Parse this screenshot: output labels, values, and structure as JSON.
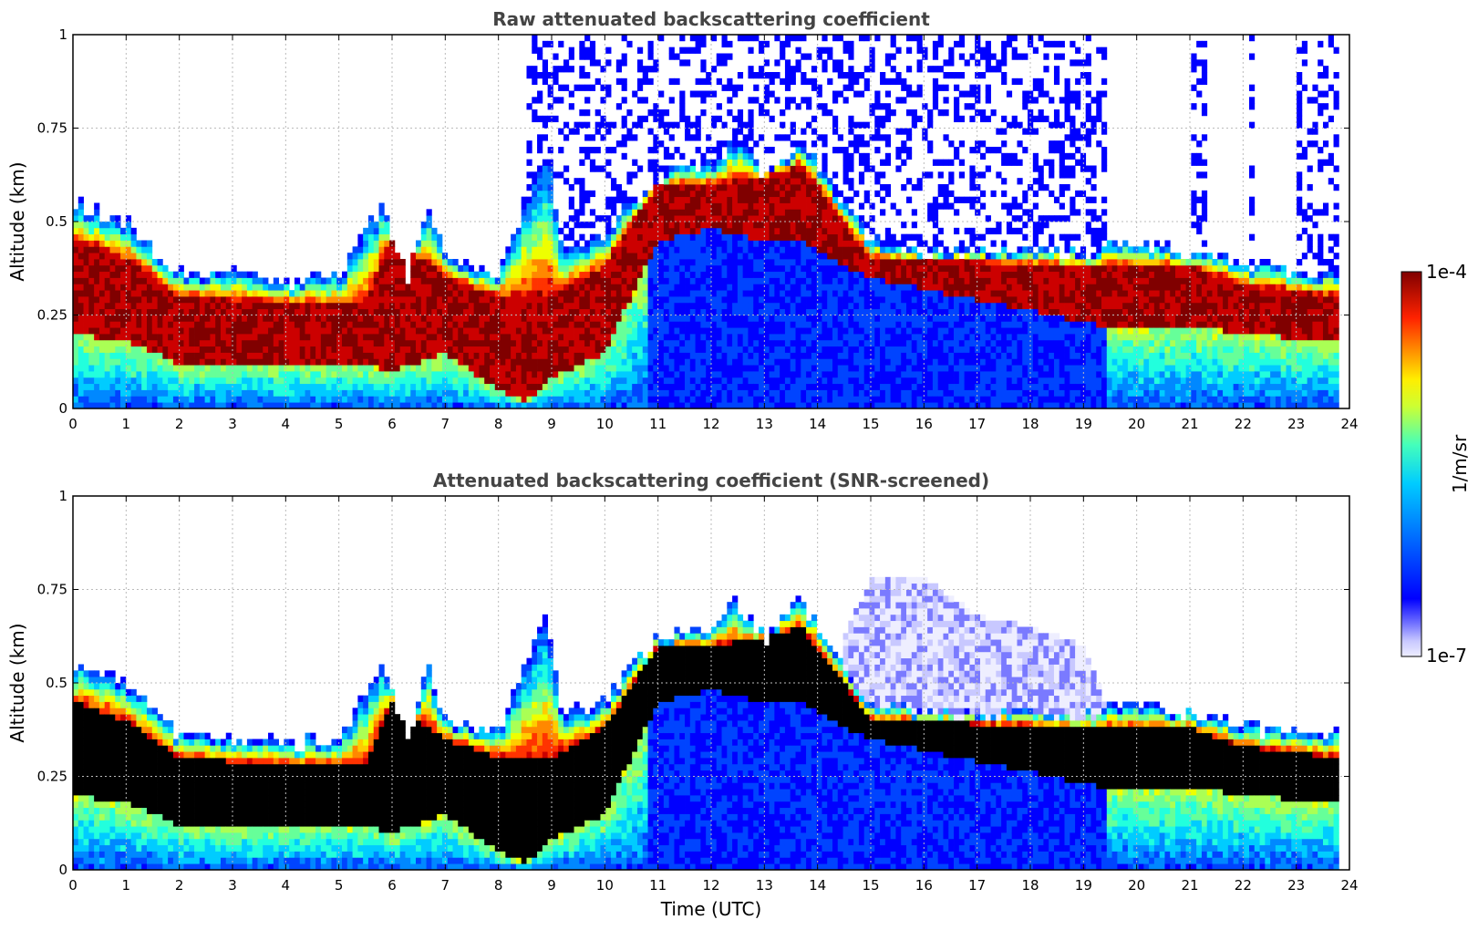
{
  "colors": {
    "colormap": [
      "#eeeeff",
      "#c8c8ff",
      "#7a7aff",
      "#0000ff",
      "#0044ff",
      "#0088ff",
      "#00ccff",
      "#22ffdd",
      "#66ff99",
      "#aaff55",
      "#eeff00",
      "#ffcc00",
      "#ff8800",
      "#ff3300",
      "#cc0000",
      "#800000"
    ],
    "screened_saturation": "#000000",
    "grid": "#bbbbbb",
    "title": "#444444"
  },
  "chart_data": [
    {
      "type": "heatmap",
      "title": "Raw attenuated backscattering coefficient",
      "xlabel": "",
      "ylabel": "Altitude (km)",
      "xlim": [
        0,
        24
      ],
      "ylim": [
        0,
        1
      ],
      "x_ticks": [
        "0",
        "1",
        "2",
        "3",
        "4",
        "5",
        "6",
        "7",
        "8",
        "9",
        "10",
        "11",
        "12",
        "13",
        "14",
        "15",
        "16",
        "17",
        "18",
        "19",
        "20",
        "21",
        "22",
        "23",
        "24"
      ],
      "y_ticks": [
        "0",
        "0.25",
        "0.5",
        "0.75",
        "1"
      ],
      "grid": true,
      "data_extent_hours": [
        0,
        23.8
      ],
      "layer_top_km": [
        [
          0,
          0.55
        ],
        [
          1,
          0.5
        ],
        [
          2,
          0.36
        ],
        [
          3,
          0.36
        ],
        [
          4,
          0.34
        ],
        [
          5,
          0.35
        ],
        [
          5.8,
          0.55
        ],
        [
          6.3,
          0.35
        ],
        [
          6.7,
          0.55
        ],
        [
          7,
          0.4
        ],
        [
          8,
          0.37
        ],
        [
          8.9,
          0.7
        ],
        [
          9.2,
          0.42
        ],
        [
          10,
          0.45
        ],
        [
          10.5,
          0.55
        ],
        [
          11,
          0.62
        ],
        [
          12,
          0.65
        ],
        [
          12.5,
          0.72
        ],
        [
          13,
          0.62
        ],
        [
          13.7,
          0.72
        ],
        [
          14.5,
          0.55
        ],
        [
          15,
          0.45
        ],
        [
          16,
          0.42
        ],
        [
          19.3,
          0.42
        ],
        [
          19.5,
          0.45
        ],
        [
          21,
          0.42
        ],
        [
          22,
          0.38
        ],
        [
          23.8,
          0.36
        ]
      ],
      "layer_core_km": [
        [
          0,
          [
            0.2,
            0.45
          ]
        ],
        [
          1,
          [
            0.18,
            0.4
          ]
        ],
        [
          2,
          [
            0.12,
            0.3
          ]
        ],
        [
          4,
          [
            0.12,
            0.28
          ]
        ],
        [
          5.5,
          [
            0.12,
            0.28
          ]
        ],
        [
          6,
          [
            0.1,
            0.45
          ]
        ],
        [
          7,
          [
            0.15,
            0.35
          ]
        ],
        [
          8,
          [
            0.05,
            0.3
          ]
        ],
        [
          8.5,
          [
            0.02,
            0.3
          ]
        ],
        [
          9,
          [
            0.08,
            0.3
          ]
        ],
        [
          10,
          [
            0.15,
            0.38
          ]
        ],
        [
          11,
          [
            0.45,
            0.6
          ]
        ],
        [
          12,
          [
            0.48,
            0.6
          ]
        ],
        [
          13,
          [
            0.45,
            0.62
          ]
        ],
        [
          13.7,
          [
            0.45,
            0.65
          ]
        ],
        [
          14.5,
          [
            0.38,
            0.5
          ]
        ],
        [
          15,
          [
            0.35,
            0.4
          ]
        ],
        [
          19.4,
          [
            0.22,
            0.38
          ]
        ],
        [
          21,
          [
            0.22,
            0.38
          ]
        ],
        [
          22,
          [
            0.2,
            0.33
          ]
        ],
        [
          23.8,
          [
            0.18,
            0.3
          ]
        ]
      ],
      "noise_region_hours": [
        [
          8.5,
          19.4
        ],
        [
          21,
          21.3
        ],
        [
          22.1,
          22.2
        ],
        [
          23,
          23.8
        ]
      ]
    },
    {
      "type": "heatmap",
      "title": "Attenuated backscattering coefficient (SNR-screened)",
      "xlabel": "Time (UTC)",
      "ylabel": "Altitude (km)",
      "xlim": [
        0,
        24
      ],
      "ylim": [
        0,
        1
      ],
      "x_ticks": [
        "0",
        "1",
        "2",
        "3",
        "4",
        "5",
        "6",
        "7",
        "8",
        "9",
        "10",
        "11",
        "12",
        "13",
        "14",
        "15",
        "16",
        "17",
        "18",
        "19",
        "20",
        "21",
        "22",
        "23",
        "24"
      ],
      "y_ticks": [
        "0",
        "0.25",
        "0.5",
        "0.75",
        "1"
      ],
      "grid": true,
      "data_extent_hours": [
        0,
        23.8
      ],
      "saturated_color": "black",
      "faint_region_hours": [
        [
          14.5,
          19.4
        ]
      ],
      "faint_region_top_km": [
        [
          14.5,
          0.62
        ],
        [
          15,
          0.78
        ],
        [
          16,
          0.78
        ],
        [
          17,
          0.68
        ],
        [
          18,
          0.65
        ],
        [
          19,
          0.6
        ],
        [
          19.4,
          0.45
        ]
      ]
    }
  ],
  "colorbar": {
    "label": "1/m/sr",
    "max_label": "1e-4",
    "min_label": "1e-7",
    "scale": "log",
    "range": [
      1e-07,
      0.0001
    ]
  }
}
